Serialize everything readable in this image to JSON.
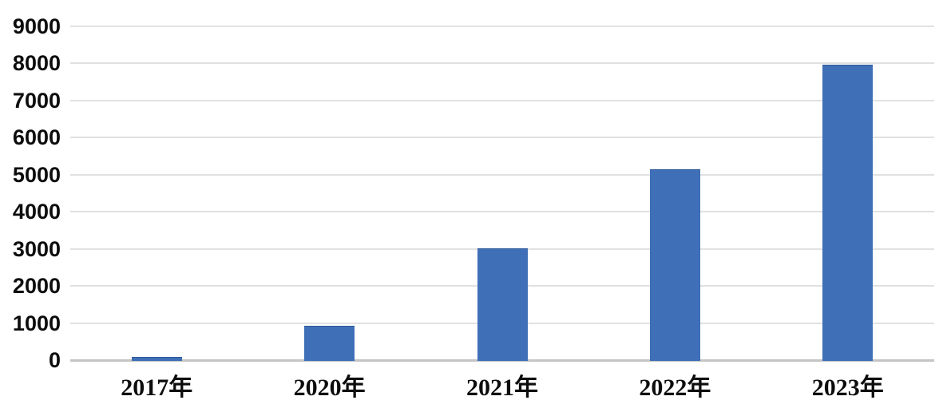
{
  "chart_data": {
    "type": "bar",
    "title": "",
    "xlabel": "",
    "ylabel": "",
    "categories": [
      "2017年",
      "2020年",
      "2021年",
      "2022年",
      "2023年"
    ],
    "values": [
      80,
      920,
      3020,
      5140,
      7960
    ],
    "ylim": [
      0,
      9000
    ],
    "yticks": [
      0,
      1000,
      2000,
      3000,
      4000,
      5000,
      6000,
      7000,
      8000,
      9000
    ],
    "grid": true,
    "legend": "none",
    "bar_color": "#3f6fb6",
    "gridline_color": "#e1e1e1",
    "axis_line_color": "#c4c4c4",
    "label_color": "#0d0d0d"
  }
}
